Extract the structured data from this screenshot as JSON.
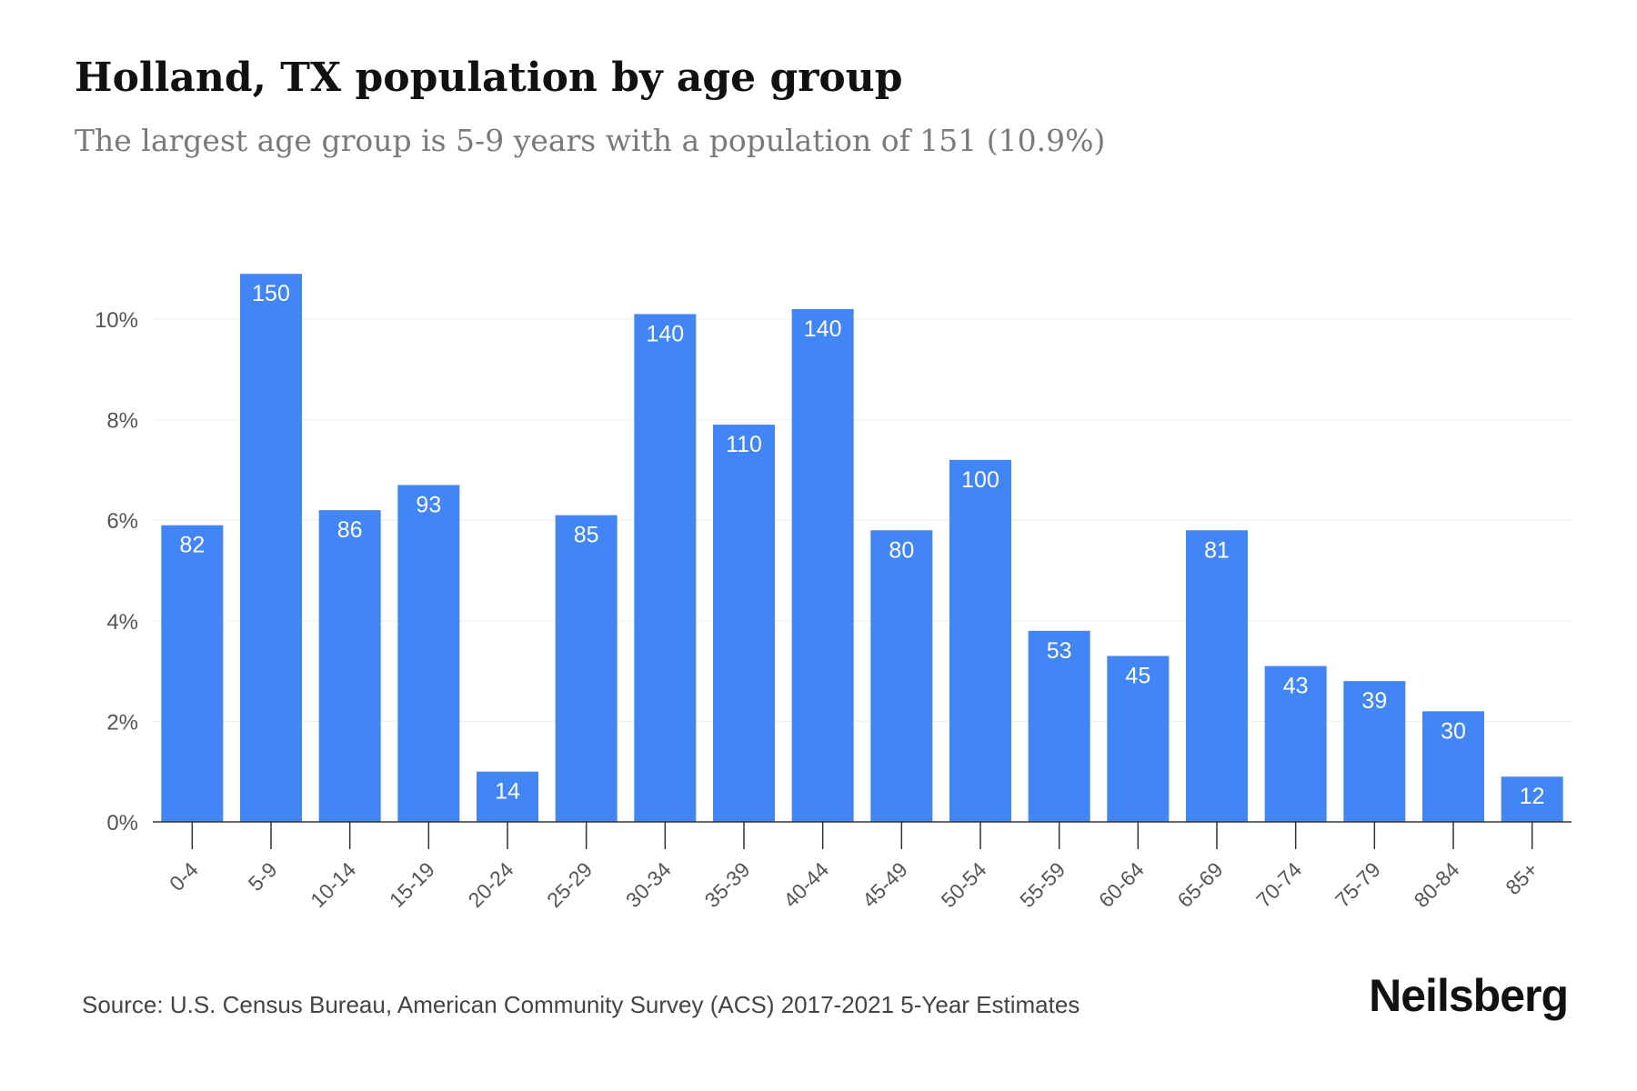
{
  "title": "Holland, TX population by age group",
  "subtitle": "The largest age group is 5-9 years with a population of 151 (10.9%)",
  "source": "Source: U.S. Census Bureau, American Community Survey (ACS) 2017-2021 5-Year Estimates",
  "brand": "Neilsberg",
  "colors": {
    "bar": "#4285F4",
    "bar_label": "#ffffff",
    "grid": "#ececec",
    "axis": "#333333",
    "tick_text": "#555555"
  },
  "chart_data": {
    "type": "bar",
    "title": "Holland, TX population by age group",
    "subtitle": "The largest age group is 5-9 years with a population of 151 (10.9%)",
    "xlabel": "",
    "ylabel": "",
    "ylim": [
      0,
      11
    ],
    "yticks": [
      "0%",
      "2%",
      "4%",
      "6%",
      "8%",
      "10%"
    ],
    "ytick_values": [
      0,
      2,
      4,
      6,
      8,
      10
    ],
    "grid": true,
    "categories": [
      "0-4",
      "5-9",
      "10-14",
      "15-19",
      "20-24",
      "25-29",
      "30-34",
      "35-39",
      "40-44",
      "45-49",
      "50-54",
      "55-59",
      "60-64",
      "65-69",
      "70-74",
      "75-79",
      "80-84",
      "85+"
    ],
    "percentages": [
      5.9,
      10.9,
      6.2,
      6.7,
      1.0,
      6.1,
      10.1,
      7.9,
      10.2,
      5.8,
      7.2,
      3.8,
      3.3,
      5.8,
      3.1,
      2.8,
      2.2,
      0.9
    ],
    "data_labels": [
      "82",
      "150",
      "86",
      "93",
      "14",
      "85",
      "140",
      "110",
      "140",
      "80",
      "100",
      "53",
      "45",
      "81",
      "43",
      "39",
      "30",
      "12"
    ]
  }
}
